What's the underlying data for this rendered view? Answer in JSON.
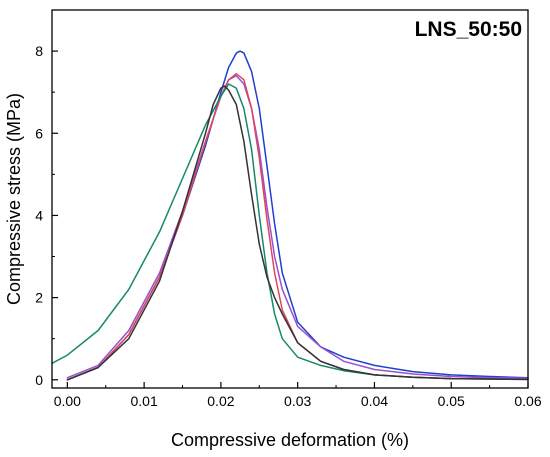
{
  "chart_data": {
    "type": "line",
    "title": "",
    "annotation": "LNS_50:50",
    "xlabel": "Compressive deformation (%)",
    "ylabel": "Compressive stress (MPa)",
    "xlim": [
      -0.002,
      0.06
    ],
    "ylim": [
      -0.2,
      9.0
    ],
    "xticks": [
      "0.00",
      "0.01",
      "0.02",
      "0.03",
      "0.04",
      "0.05",
      "0.06"
    ],
    "yticks": [
      "0",
      "2",
      "4",
      "6",
      "8"
    ],
    "grid": false,
    "legend": "none",
    "series": [
      {
        "color": "#1f3fd1",
        "x": [
          0.0,
          0.004,
          0.008,
          0.012,
          0.015,
          0.018,
          0.02,
          0.021,
          0.022,
          0.0225,
          0.023,
          0.024,
          0.025,
          0.026,
          0.027,
          0.028,
          0.03,
          0.033,
          0.036,
          0.04,
          0.045,
          0.05,
          0.055,
          0.06
        ],
        "y": [
          0.0,
          0.3,
          1.1,
          2.5,
          4.0,
          5.7,
          7.0,
          7.6,
          7.95,
          8.0,
          7.95,
          7.5,
          6.6,
          5.2,
          3.8,
          2.6,
          1.4,
          0.8,
          0.55,
          0.35,
          0.2,
          0.12,
          0.08,
          0.05
        ]
      },
      {
        "color": "#9a4fd0",
        "x": [
          0.0,
          0.004,
          0.008,
          0.012,
          0.015,
          0.018,
          0.02,
          0.021,
          0.022,
          0.023,
          0.024,
          0.025,
          0.026,
          0.027,
          0.028,
          0.03,
          0.033,
          0.036,
          0.04,
          0.045,
          0.05,
          0.055,
          0.06
        ],
        "y": [
          0.05,
          0.35,
          1.2,
          2.6,
          4.1,
          5.8,
          6.9,
          7.3,
          7.4,
          7.2,
          6.6,
          5.6,
          4.2,
          3.0,
          2.2,
          1.3,
          0.8,
          0.45,
          0.25,
          0.14,
          0.08,
          0.05,
          0.04
        ]
      },
      {
        "color": "#e0455a",
        "x": [
          0.0,
          0.004,
          0.008,
          0.012,
          0.015,
          0.018,
          0.02,
          0.021,
          0.022,
          0.023,
          0.024,
          0.025,
          0.026,
          0.027,
          0.028,
          0.03,
          0.033,
          0.036,
          0.04,
          0.045,
          0.05,
          0.055,
          0.06
        ],
        "y": [
          0.0,
          0.3,
          1.1,
          2.5,
          4.0,
          5.8,
          6.9,
          7.3,
          7.45,
          7.3,
          6.6,
          5.4,
          3.9,
          2.6,
          1.7,
          0.9,
          0.45,
          0.25,
          0.12,
          0.06,
          0.03,
          0.02,
          0.01
        ]
      },
      {
        "color": "#15886e",
        "x": [
          -0.002,
          0.0,
          0.004,
          0.008,
          0.012,
          0.015,
          0.018,
          0.02,
          0.021,
          0.022,
          0.023,
          0.024,
          0.025,
          0.026,
          0.027,
          0.028,
          0.03,
          0.033,
          0.036,
          0.04,
          0.045,
          0.05,
          0.055,
          0.06
        ],
        "y": [
          0.4,
          0.6,
          1.2,
          2.2,
          3.6,
          4.9,
          6.2,
          6.9,
          7.2,
          7.1,
          6.6,
          5.6,
          4.0,
          2.6,
          1.6,
          1.0,
          0.55,
          0.35,
          0.22,
          0.12,
          0.06,
          0.03,
          0.02,
          0.01
        ]
      },
      {
        "color": "#333333",
        "x": [
          0.0,
          0.004,
          0.008,
          0.012,
          0.015,
          0.018,
          0.019,
          0.02,
          0.0205,
          0.021,
          0.022,
          0.023,
          0.024,
          0.025,
          0.026,
          0.027,
          0.028,
          0.03,
          0.033,
          0.036,
          0.04,
          0.045,
          0.05,
          0.055,
          0.06
        ],
        "y": [
          0.0,
          0.3,
          1.0,
          2.4,
          4.1,
          6.0,
          6.7,
          7.1,
          7.15,
          7.05,
          6.7,
          5.8,
          4.5,
          3.3,
          2.5,
          2.0,
          1.6,
          0.9,
          0.45,
          0.25,
          0.12,
          0.06,
          0.03,
          0.02,
          0.01
        ]
      }
    ]
  }
}
